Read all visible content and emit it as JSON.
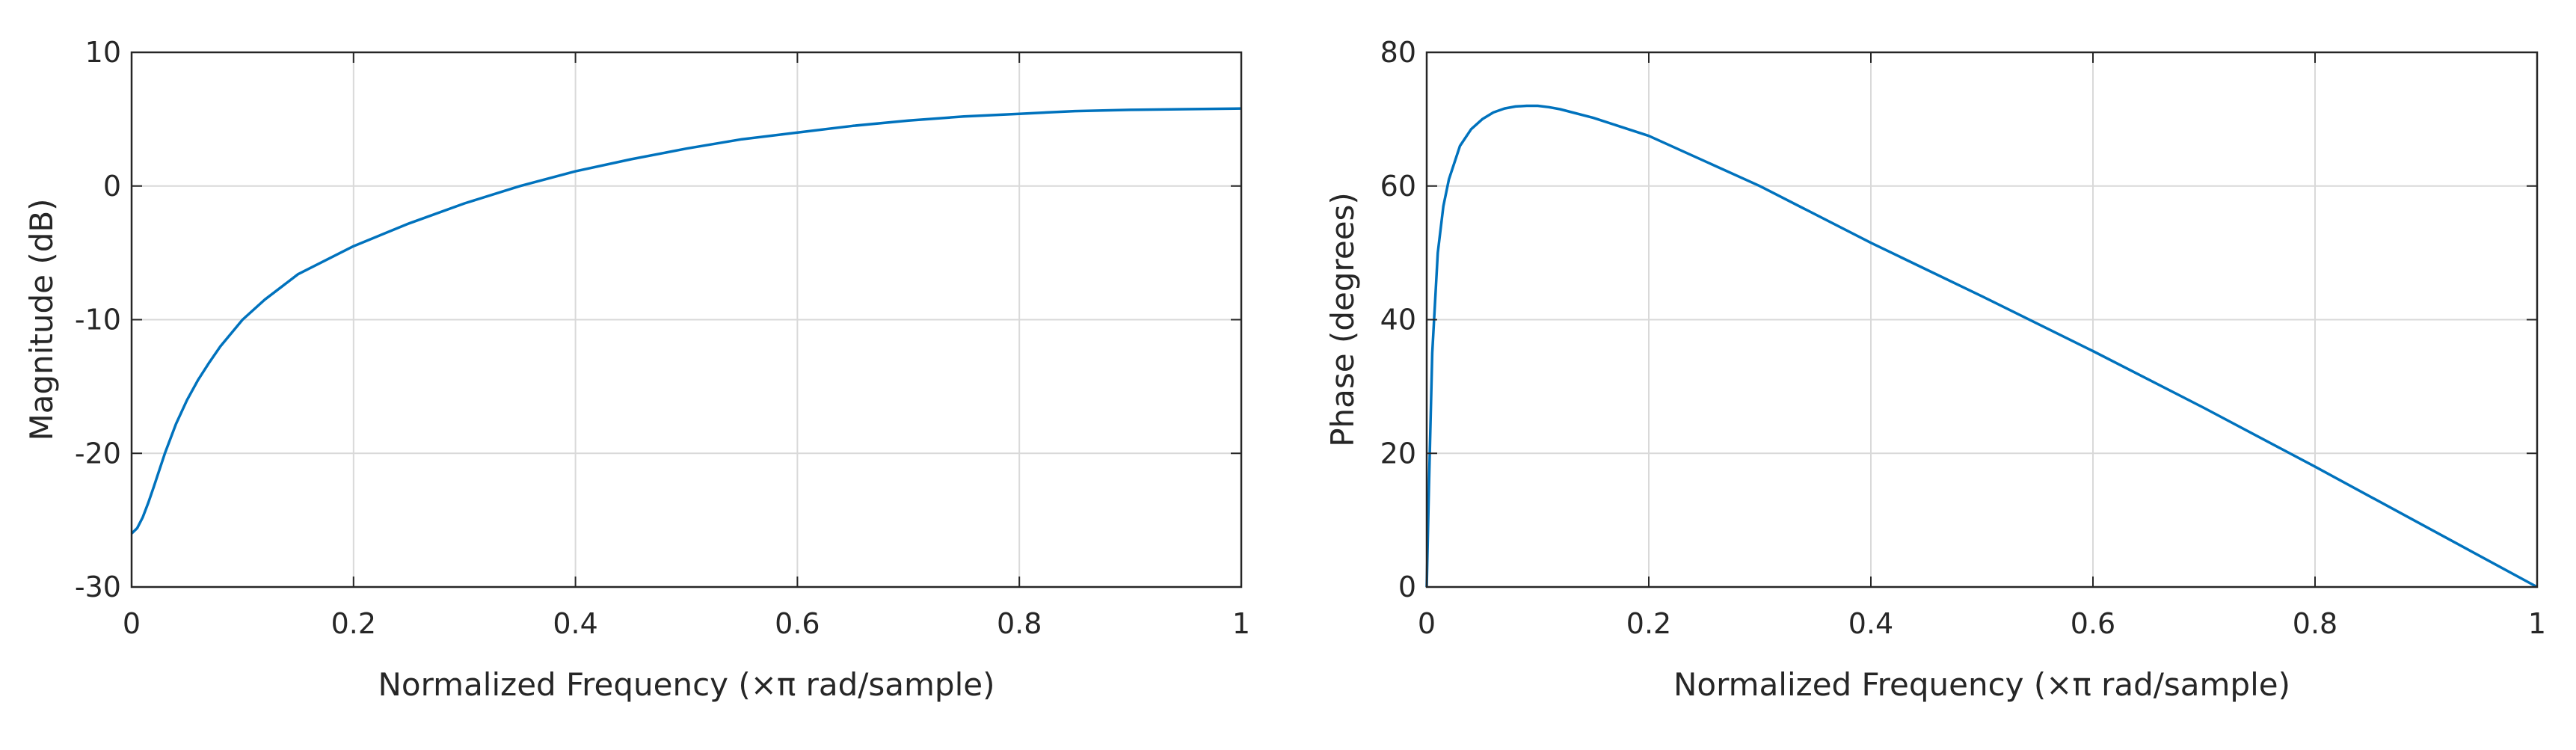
{
  "colors": {
    "line": "#0072bd",
    "grid": "#d9d9d9",
    "axes": "#262626",
    "background": "#ffffff"
  },
  "chart_data": [
    {
      "type": "line",
      "title": "",
      "xlabel": "Normalized Frequency (×π rad/sample)",
      "ylabel": "Magnitude (dB)",
      "xlim": [
        0,
        1
      ],
      "ylim": [
        -30,
        10
      ],
      "xticks": [
        0,
        0.2,
        0.4,
        0.6,
        0.8,
        1
      ],
      "xtick_labels": [
        "0",
        "0.2",
        "0.4",
        "0.6",
        "0.8",
        "1"
      ],
      "yticks": [
        -30,
        -20,
        -10,
        0,
        10
      ],
      "ytick_labels": [
        "-30",
        "-20",
        "-10",
        "0",
        "10"
      ],
      "grid": true,
      "series": [
        {
          "x": [
            0,
            0.005,
            0.01,
            0.015,
            0.02,
            0.03,
            0.04,
            0.05,
            0.06,
            0.07,
            0.08,
            0.1,
            0.12,
            0.15,
            0.2,
            0.25,
            0.3,
            0.35,
            0.4,
            0.45,
            0.5,
            0.55,
            0.6,
            0.65,
            0.7,
            0.75,
            0.8,
            0.85,
            0.9,
            0.95,
            1.0
          ],
          "y": [
            -26.0,
            -25.6,
            -24.8,
            -23.7,
            -22.5,
            -20.0,
            -17.8,
            -16.0,
            -14.5,
            -13.2,
            -12.0,
            -10.0,
            -8.5,
            -6.6,
            -4.5,
            -2.8,
            -1.3,
            0.0,
            1.1,
            2.0,
            2.8,
            3.5,
            4.0,
            4.5,
            4.9,
            5.2,
            5.4,
            5.6,
            5.7,
            5.75,
            5.8
          ]
        }
      ]
    },
    {
      "type": "line",
      "title": "",
      "xlabel": "Normalized Frequency (×π rad/sample)",
      "ylabel": "Phase (degrees)",
      "xlim": [
        0,
        1
      ],
      "ylim": [
        0,
        80
      ],
      "xticks": [
        0,
        0.2,
        0.4,
        0.6,
        0.8,
        1
      ],
      "xtick_labels": [
        "0",
        "0.2",
        "0.4",
        "0.6",
        "0.8",
        "1"
      ],
      "yticks": [
        0,
        20,
        40,
        60,
        80
      ],
      "ytick_labels": [
        "0",
        "20",
        "40",
        "60",
        "80"
      ],
      "grid": true,
      "series": [
        {
          "x": [
            0,
            0.002,
            0.005,
            0.01,
            0.015,
            0.02,
            0.03,
            0.04,
            0.05,
            0.06,
            0.07,
            0.08,
            0.09,
            0.1,
            0.11,
            0.12,
            0.15,
            0.2,
            0.3,
            0.4,
            0.5,
            0.6,
            0.7,
            0.8,
            0.9,
            1.0
          ],
          "y": [
            0,
            15,
            35,
            50,
            57,
            61,
            66,
            68.5,
            70,
            71,
            71.6,
            71.9,
            72,
            72,
            71.8,
            71.5,
            70.2,
            67.5,
            60,
            51.5,
            43.5,
            35.3,
            26.8,
            18,
            9,
            0
          ]
        }
      ]
    }
  ]
}
